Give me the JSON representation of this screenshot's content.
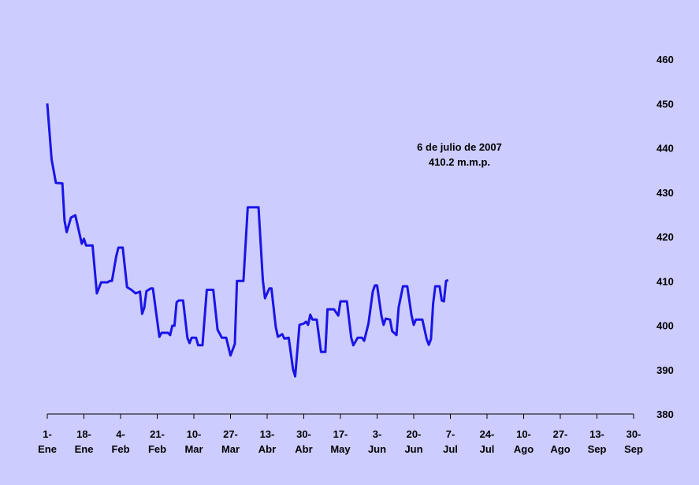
{
  "chart_data": {
    "type": "line",
    "annotation": [
      "6 de julio de 2007",
      "410.2 m.m.p."
    ],
    "color": "#1a14e6",
    "x": [
      "1-Ene",
      "3-Ene",
      "5-Ene",
      "8-Ene",
      "9-Ene",
      "10-Ene",
      "12-Ene",
      "14-Ene",
      "17-Ene",
      "18-Ene",
      "19-Ene",
      "22-Ene",
      "24-Ene",
      "26-Ene",
      "29-Ene",
      "30-Ene",
      "31-Ene",
      "2-Feb",
      "3-Feb",
      "5-Feb",
      "7-Feb",
      "9-Feb",
      "11-Feb",
      "13-Feb",
      "14-Feb",
      "15-Feb",
      "16-Feb",
      "18-Feb",
      "19-Feb",
      "22-Feb",
      "23-Feb",
      "26-Feb",
      "27-Feb",
      "28-Feb",
      "1-Mar",
      "2-Mar",
      "3-Mar",
      "5-Mar",
      "7-Mar",
      "8-Mar",
      "9-Mar",
      "11-Mar",
      "12-Mar",
      "14-Mar",
      "16-Mar",
      "19-Mar",
      "21-Mar",
      "23-Mar",
      "25-Mar",
      "27-Mar",
      "29-Mar",
      "30-Mar",
      "2-Abr",
      "4-Abr",
      "9-Abr",
      "11-Abr",
      "12-Abr",
      "14-Abr",
      "15-Abr",
      "17-Abr",
      "18-Abr",
      "20-Abr",
      "21-Abr",
      "23-Abr",
      "25-Abr",
      "26-Abr",
      "28-Abr",
      "30-Abr",
      "1-May",
      "2-May",
      "3-May",
      "4-May",
      "6-May",
      "8-May",
      "10-May",
      "11-May",
      "14-May",
      "16-May",
      "17-May",
      "20-May",
      "22-May",
      "23-May",
      "25-May",
      "27-May",
      "28-May",
      "30-May",
      "1-Jun",
      "2-Jun",
      "3-Jun",
      "5-Jun",
      "6-Jun",
      "7-Jun",
      "9-Jun",
      "10-Jun",
      "12-Jun",
      "13-Jun",
      "15-Jun",
      "17-Jun",
      "19-Jun",
      "20-Jun",
      "21-Jun",
      "24-Jun",
      "26-Jun",
      "27-Jun",
      "28-Jun",
      "29-Jun",
      "30-Jun",
      "2-Jul",
      "3-Jul",
      "4-Jul",
      "5-Jul",
      "6-Jul"
    ],
    "values": [
      450,
      437.4,
      432.1,
      432,
      423.6,
      421,
      424.3,
      424.8,
      418.4,
      419.5,
      418,
      418,
      407.2,
      409.7,
      409.7,
      410,
      410,
      415.6,
      417.5,
      417.5,
      408.6,
      408,
      407.2,
      407.6,
      402.6,
      404,
      407.7,
      408.3,
      408.3,
      397.4,
      398.3,
      398.3,
      397.8,
      399.9,
      399.9,
      405.2,
      405.6,
      405.6,
      397.2,
      396,
      397.2,
      397.2,
      395.5,
      395.5,
      408,
      408,
      399,
      397.2,
      397.2,
      393.2,
      395.8,
      410,
      410,
      426.6,
      426.6,
      410.2,
      406.1,
      408.3,
      408.3,
      399.6,
      397.4,
      398,
      397,
      397.2,
      390.1,
      388.5,
      400.1,
      400.4,
      400.8,
      400.1,
      402.4,
      401.3,
      401.3,
      394,
      394,
      403.6,
      403.6,
      402.2,
      405.4,
      405.4,
      397.2,
      395.5,
      397.2,
      397.2,
      396.5,
      400.4,
      407.6,
      409,
      409,
      402.2,
      400.1,
      401.5,
      401.3,
      398.7,
      397.8,
      404,
      408.8,
      408.8,
      402.2,
      400.1,
      401.3,
      401.3,
      396.9,
      395.6,
      396.9,
      404.9,
      408.8,
      408.8,
      405.6,
      405.4,
      410,
      410.2
    ],
    "xlim": [
      "1-Ene",
      "30-Sep"
    ],
    "xticks": [
      "1-Ene",
      "18-Ene",
      "4-Feb",
      "21-Feb",
      "10-Mar",
      "27-Mar",
      "13-Abr",
      "30-Abr",
      "17-May",
      "3-Jun",
      "20-Jun",
      "7-Jul",
      "24-Jul",
      "10-Ago",
      "27-Ago",
      "13-Sep",
      "30-Sep"
    ],
    "ylim": [
      380,
      460
    ],
    "yticks": [
      380,
      390,
      400,
      410,
      420,
      430,
      440,
      450,
      460
    ]
  }
}
